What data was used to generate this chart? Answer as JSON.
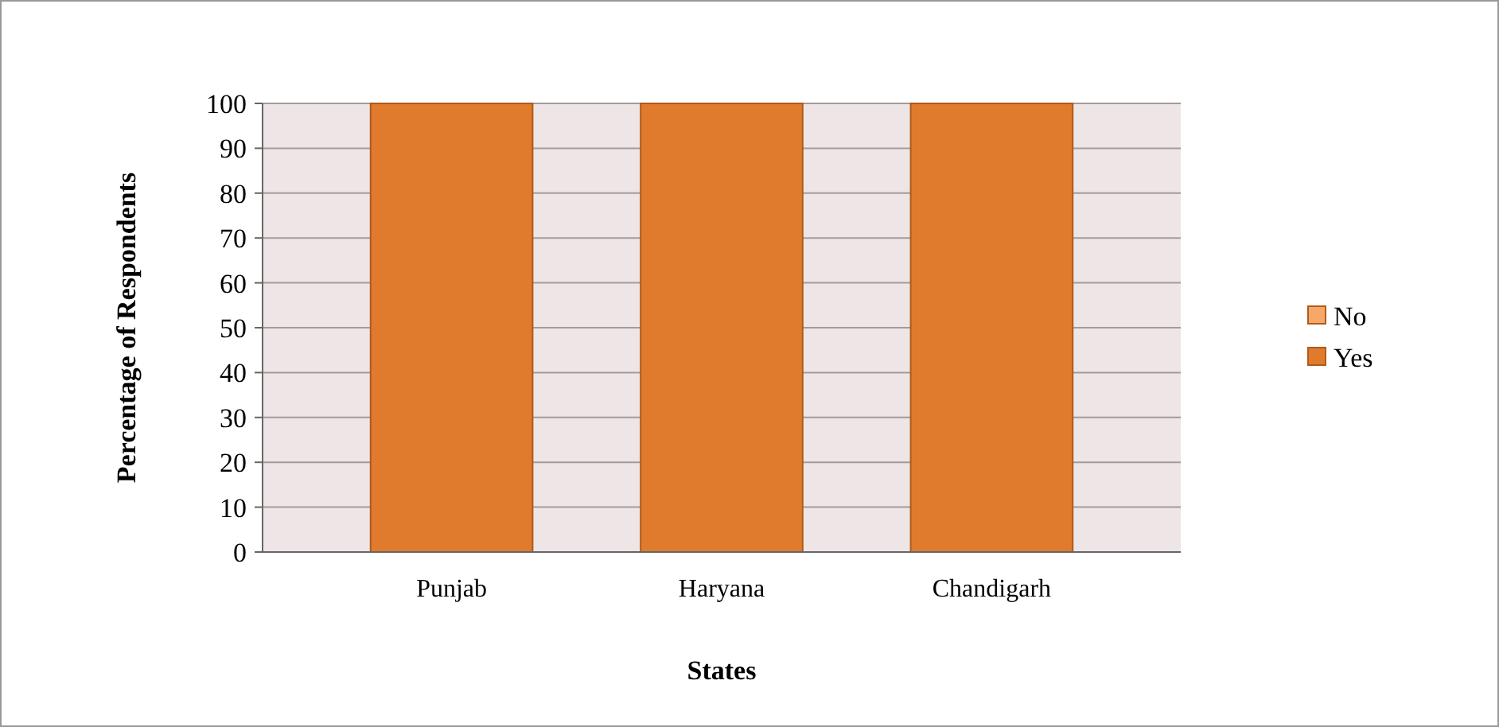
{
  "chart_data": {
    "type": "bar",
    "stacked": true,
    "xlabel": "States",
    "ylabel": "Percentage of Respondents",
    "categories": [
      "Punjab",
      "Haryana",
      "Chandigarh"
    ],
    "series": [
      {
        "name": "Yes",
        "color": "#e07b2e",
        "values": [
          100,
          100,
          100
        ]
      },
      {
        "name": "No",
        "color": "#f6a868",
        "values": [
          0,
          0,
          0
        ]
      }
    ],
    "ylim": [
      0,
      100
    ],
    "yticks": [
      0,
      10,
      20,
      30,
      40,
      50,
      60,
      70,
      80,
      90,
      100
    ],
    "grid": "y",
    "legend": "right"
  }
}
